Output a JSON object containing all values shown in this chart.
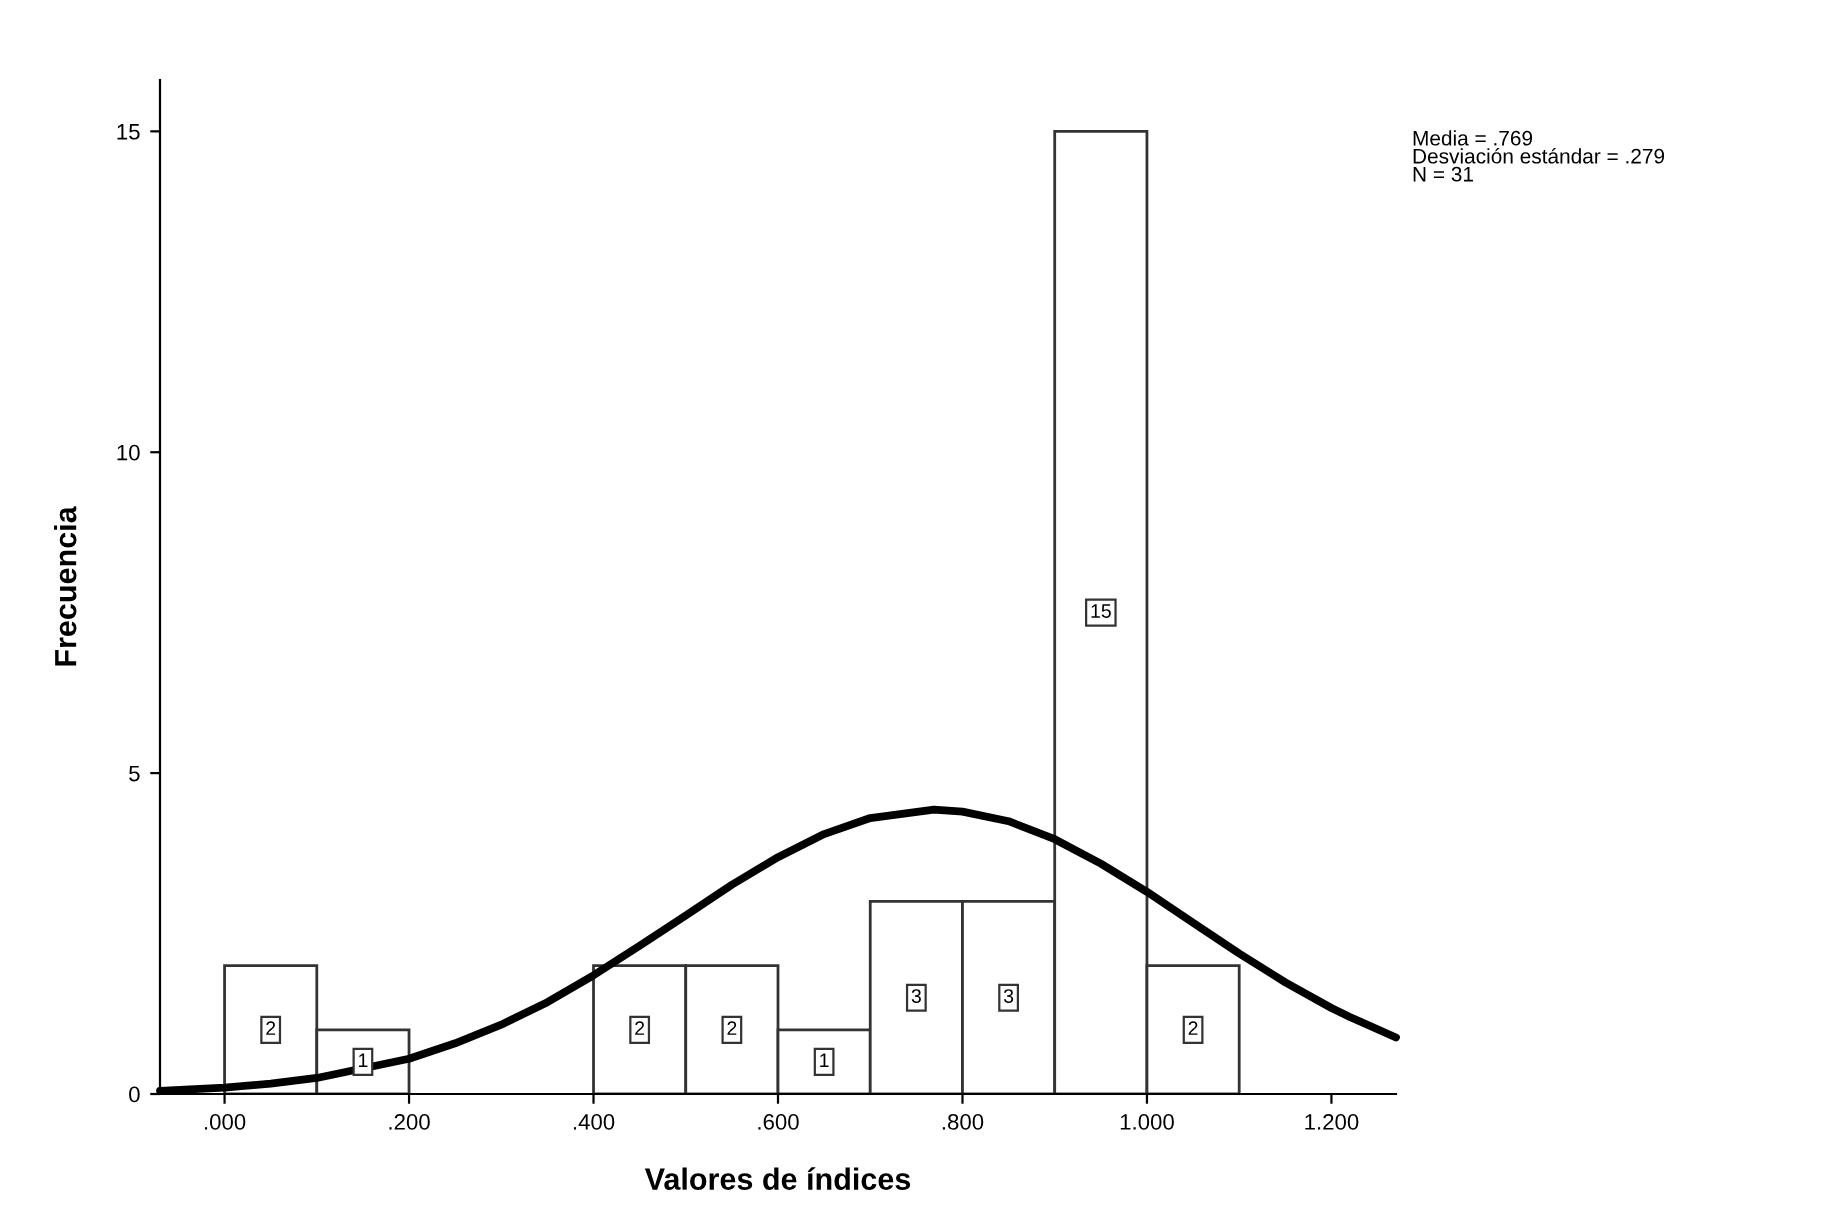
{
  "chart_data": {
    "type": "histogram",
    "xlabel": "Valores de índices",
    "ylabel": "Frecuencia",
    "bins": [
      0.0,
      0.1,
      0.2,
      0.3,
      0.4,
      0.5,
      0.6,
      0.7,
      0.8,
      0.9,
      1.0,
      1.1
    ],
    "values": [
      2,
      1,
      0,
      0,
      2,
      2,
      1,
      3,
      3,
      15,
      2
    ],
    "value_labels": [
      "2",
      "1",
      null,
      null,
      "2",
      "2",
      "1",
      "3",
      "3",
      "15",
      "2"
    ],
    "color": "#ffffff",
    "series": [
      {
        "type": "line",
        "color": "#000000",
        "x": [
          -0.07,
          0.0,
          0.05,
          0.1,
          0.2,
          0.25,
          0.3,
          0.35,
          0.4,
          0.45,
          0.5,
          0.55,
          0.6,
          0.65,
          0.7,
          0.769,
          0.8,
          0.85,
          0.9,
          0.95,
          1.0,
          1.05,
          1.1,
          1.15,
          1.2,
          1.22,
          1.27
        ],
        "values": [
          0.05,
          0.1,
          0.16,
          0.25,
          0.55,
          0.79,
          1.08,
          1.43,
          1.85,
          2.31,
          2.78,
          3.26,
          3.69,
          4.05,
          4.3,
          4.43,
          4.4,
          4.25,
          3.97,
          3.59,
          3.15,
          2.67,
          2.19,
          1.74,
          1.34,
          1.2,
          0.88
        ]
      }
    ],
    "xlim": [
      -0.07,
      1.27
    ],
    "xticks": [
      {
        "value": 0.0,
        "label": ".000"
      },
      {
        "value": 0.2,
        "label": ".200"
      },
      {
        "value": 0.4,
        "label": ".400"
      },
      {
        "value": 0.6,
        "label": ".600"
      },
      {
        "value": 0.8,
        "label": ".800"
      },
      {
        "value": 1.0,
        "label": "1.000"
      },
      {
        "value": 1.2,
        "label": "1.200"
      }
    ],
    "ylim": [
      0,
      15.8
    ],
    "yticks": [
      0,
      5,
      10,
      15
    ],
    "grid": false,
    "legend": false,
    "annotations": [
      "Media = .769",
      "Desviación estándar = .279",
      "N = 31"
    ]
  }
}
